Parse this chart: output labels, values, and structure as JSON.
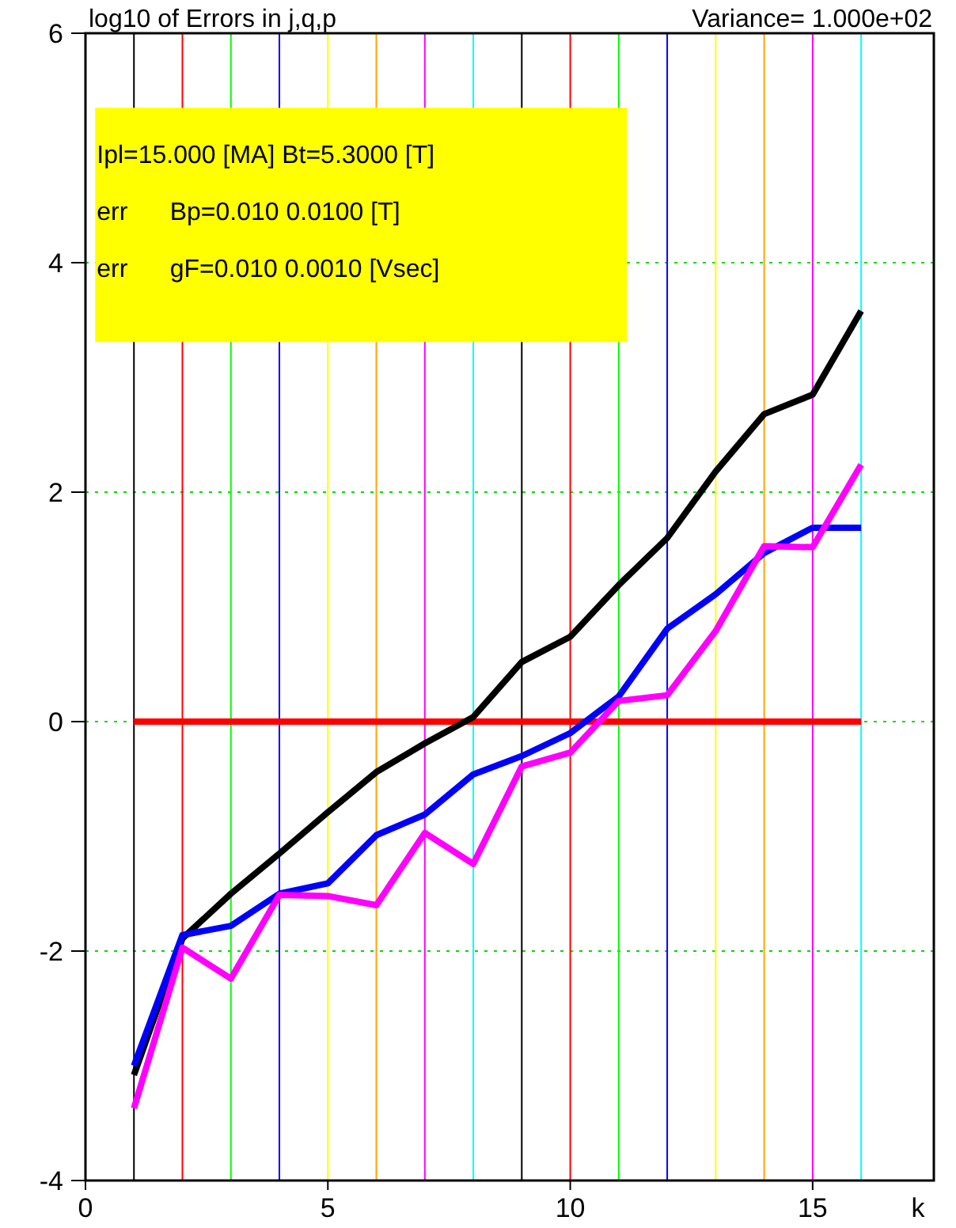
{
  "chart_data": {
    "type": "line",
    "title": "log10 of Errors in j,q,p",
    "subtitle": "Variance= 1.000e+02",
    "xlabel": "k",
    "annotations": [
      "Ipl=15.000 [MA] Bt=5.3000 [T]",
      "err      Bp=0.010 0.0100 [T]",
      "err      gF=0.010 0.0010 [Vsec]"
    ],
    "x": [
      1,
      2,
      3,
      4,
      5,
      6,
      7,
      8,
      9,
      10,
      11,
      12,
      13,
      14,
      15,
      16
    ],
    "series": [
      {
        "color": "#ff0000",
        "values": [
          0,
          0,
          0,
          0,
          0,
          0,
          0,
          0,
          0,
          0,
          0,
          0,
          0,
          0,
          0,
          0
        ]
      },
      {
        "color": "#000000",
        "values": [
          -3.08,
          -1.89,
          -1.5,
          -1.15,
          -0.79,
          -0.44,
          -0.19,
          0.04,
          0.52,
          0.74,
          1.19,
          1.6,
          2.18,
          2.68,
          2.85,
          3.58
        ]
      },
      {
        "color": "#0000ff",
        "values": [
          -3.0,
          -1.86,
          -1.78,
          -1.5,
          -1.41,
          -0.99,
          -0.81,
          -0.46,
          -0.3,
          -0.1,
          0.22,
          0.81,
          1.11,
          1.47,
          1.69,
          1.69
        ]
      },
      {
        "color": "#ff00ff",
        "values": [
          -3.37,
          -1.97,
          -2.24,
          -1.51,
          -1.52,
          -1.6,
          -0.97,
          -1.24,
          -0.39,
          -0.27,
          0.18,
          0.23,
          0.79,
          1.53,
          1.52,
          2.24
        ]
      }
    ],
    "ref_lines": [
      {
        "axis": "x",
        "value": 1,
        "color": "#000000"
      },
      {
        "axis": "x",
        "value": 2,
        "color": "#ff0000"
      },
      {
        "axis": "x",
        "value": 3,
        "color": "#00ff00"
      },
      {
        "axis": "x",
        "value": 4,
        "color": "#0000ff"
      },
      {
        "axis": "x",
        "value": 5,
        "color": "#ffff00"
      },
      {
        "axis": "x",
        "value": 6,
        "color": "#ffa500"
      },
      {
        "axis": "x",
        "value": 7,
        "color": "#ff00ff"
      },
      {
        "axis": "x",
        "value": 8,
        "color": "#00ffff"
      },
      {
        "axis": "x",
        "value": 9,
        "color": "#000000"
      },
      {
        "axis": "x",
        "value": 10,
        "color": "#ff0000"
      },
      {
        "axis": "x",
        "value": 11,
        "color": "#00ff00"
      },
      {
        "axis": "x",
        "value": 12,
        "color": "#0000ff"
      },
      {
        "axis": "x",
        "value": 13,
        "color": "#ffff00"
      },
      {
        "axis": "x",
        "value": 14,
        "color": "#ffa500"
      },
      {
        "axis": "x",
        "value": 15,
        "color": "#ff00ff"
      },
      {
        "axis": "x",
        "value": 16,
        "color": "#00ffff"
      }
    ],
    "xlim": [
      0,
      17.5
    ],
    "xticks": [
      0,
      5,
      10,
      15
    ],
    "ylim": [
      -4,
      6
    ],
    "yticks": [
      -4,
      -2,
      0,
      2,
      4,
      6
    ],
    "grid": "y",
    "marker": "none",
    "line_style": "solid"
  }
}
